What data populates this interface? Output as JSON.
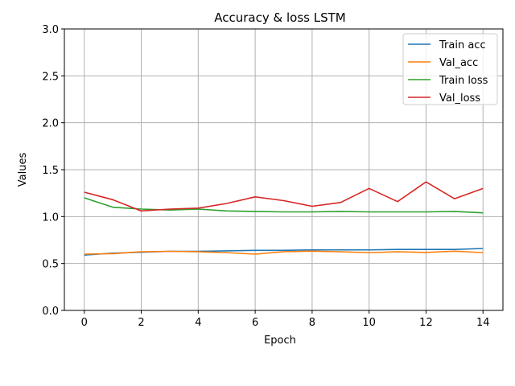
{
  "chart_data": {
    "type": "line",
    "title": "Accuracy & loss LSTM",
    "xlabel": "Epoch",
    "ylabel": "Values",
    "xlim": [
      -0.7,
      14.7
    ],
    "ylim": [
      0,
      3
    ],
    "xticks": [
      0,
      2,
      4,
      6,
      8,
      10,
      12,
      14
    ],
    "yticks": [
      0.0,
      0.5,
      1.0,
      1.5,
      2.0,
      2.5,
      3.0
    ],
    "ytick_labels": [
      "0.0",
      "0.5",
      "1.0",
      "1.5",
      "2.0",
      "2.5",
      "3.0"
    ],
    "grid": true,
    "legend_position": "top-right",
    "x": [
      0,
      1,
      2,
      3,
      4,
      5,
      6,
      7,
      8,
      9,
      10,
      11,
      12,
      13,
      14
    ],
    "series": [
      {
        "name": "Train acc",
        "color": "#1f77b4",
        "values": [
          0.59,
          0.61,
          0.62,
          0.63,
          0.63,
          0.635,
          0.64,
          0.64,
          0.645,
          0.645,
          0.645,
          0.65,
          0.65,
          0.65,
          0.66
        ]
      },
      {
        "name": "Val_acc",
        "color": "#ff7f0e",
        "values": [
          0.6,
          0.605,
          0.625,
          0.63,
          0.625,
          0.615,
          0.6,
          0.625,
          0.632,
          0.625,
          0.615,
          0.625,
          0.618,
          0.632,
          0.615
        ]
      },
      {
        "name": "Train loss",
        "color": "#2ca02c",
        "values": [
          1.2,
          1.1,
          1.08,
          1.07,
          1.08,
          1.06,
          1.055,
          1.05,
          1.05,
          1.055,
          1.05,
          1.05,
          1.05,
          1.055,
          1.04
        ]
      },
      {
        "name": "Val_loss",
        "color": "#d62728",
        "values": [
          1.26,
          1.18,
          1.06,
          1.08,
          1.09,
          1.14,
          1.21,
          1.17,
          1.11,
          1.15,
          1.3,
          1.16,
          1.37,
          1.19,
          1.3
        ]
      }
    ]
  }
}
